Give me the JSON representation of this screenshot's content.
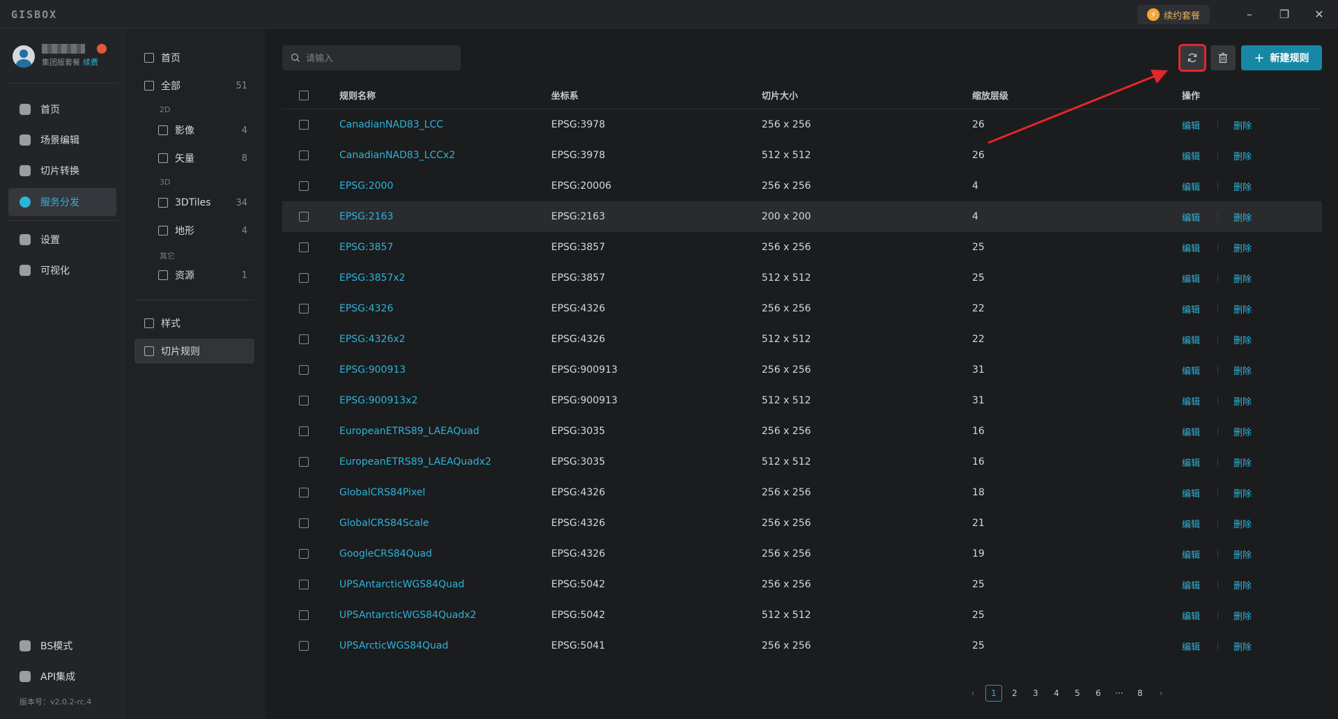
{
  "app": {
    "logo": "GISBOX",
    "renew_pill": "续约套餐"
  },
  "user": {
    "plan": "集团版套餐",
    "renew_link": "续费"
  },
  "left_nav": {
    "items": [
      {
        "label": "首页",
        "icon": "home-icon"
      },
      {
        "label": "场景编辑",
        "icon": "cube-icon"
      },
      {
        "label": "切片转换",
        "icon": "swap-icon"
      },
      {
        "label": "服务分发",
        "icon": "upload-icon",
        "active": true
      },
      {
        "label": "设置",
        "icon": "gear-icon"
      },
      {
        "label": "可视化",
        "icon": "chart-icon"
      }
    ],
    "bottom": [
      {
        "label": "BS模式",
        "icon": "code-icon"
      },
      {
        "label": "API集成",
        "icon": "api-icon"
      }
    ],
    "version": "版本号：v2.0.2-rc.4"
  },
  "sub_nav": {
    "home": "首页",
    "all": {
      "label": "全部",
      "count": "51"
    },
    "group_2d": "2D",
    "imagery": {
      "label": "影像",
      "count": "4"
    },
    "vector": {
      "label": "矢量",
      "count": "8"
    },
    "group_3d": "3D",
    "tiles3d": {
      "label": "3DTiles",
      "count": "34"
    },
    "terrain": {
      "label": "地形",
      "count": "4"
    },
    "group_other": "其它",
    "resource": {
      "label": "资源",
      "count": "1"
    },
    "style": "样式",
    "tile_rules": "切片规则"
  },
  "toolbar": {
    "search_placeholder": "请输入",
    "new_rule": "新建规则"
  },
  "table": {
    "headers": {
      "name": "规则名称",
      "crs": "坐标系",
      "tile_size": "切片大小",
      "zoom": "缩放层级",
      "ops": "操作"
    },
    "edit_label": "编辑",
    "delete_label": "删除",
    "rows": [
      {
        "name": "CanadianNAD83_LCC",
        "crs": "EPSG:3978",
        "size": "256 x 256",
        "zoom": "26"
      },
      {
        "name": "CanadianNAD83_LCCx2",
        "crs": "EPSG:3978",
        "size": "512 x 512",
        "zoom": "26"
      },
      {
        "name": "EPSG:2000",
        "crs": "EPSG:20006",
        "size": "256 x 256",
        "zoom": "4"
      },
      {
        "name": "EPSG:2163",
        "crs": "EPSG:2163",
        "size": "200 x 200",
        "zoom": "4"
      },
      {
        "name": "EPSG:3857",
        "crs": "EPSG:3857",
        "size": "256 x 256",
        "zoom": "25"
      },
      {
        "name": "EPSG:3857x2",
        "crs": "EPSG:3857",
        "size": "512 x 512",
        "zoom": "25"
      },
      {
        "name": "EPSG:4326",
        "crs": "EPSG:4326",
        "size": "256 x 256",
        "zoom": "22"
      },
      {
        "name": "EPSG:4326x2",
        "crs": "EPSG:4326",
        "size": "512 x 512",
        "zoom": "22"
      },
      {
        "name": "EPSG:900913",
        "crs": "EPSG:900913",
        "size": "256 x 256",
        "zoom": "31"
      },
      {
        "name": "EPSG:900913x2",
        "crs": "EPSG:900913",
        "size": "512 x 512",
        "zoom": "31"
      },
      {
        "name": "EuropeanETRS89_LAEAQuad",
        "crs": "EPSG:3035",
        "size": "256 x 256",
        "zoom": "16"
      },
      {
        "name": "EuropeanETRS89_LAEAQuadx2",
        "crs": "EPSG:3035",
        "size": "512 x 512",
        "zoom": "16"
      },
      {
        "name": "GlobalCRS84Pixel",
        "crs": "EPSG:4326",
        "size": "256 x 256",
        "zoom": "18"
      },
      {
        "name": "GlobalCRS84Scale",
        "crs": "EPSG:4326",
        "size": "256 x 256",
        "zoom": "21"
      },
      {
        "name": "GoogleCRS84Quad",
        "crs": "EPSG:4326",
        "size": "256 x 256",
        "zoom": "19"
      },
      {
        "name": "UPSAntarcticWGS84Quad",
        "crs": "EPSG:5042",
        "size": "256 x 256",
        "zoom": "25"
      },
      {
        "name": "UPSAntarcticWGS84Quadx2",
        "crs": "EPSG:5042",
        "size": "512 x 512",
        "zoom": "25"
      },
      {
        "name": "UPSArcticWGS84Quad",
        "crs": "EPSG:5041",
        "size": "256 x 256",
        "zoom": "25"
      }
    ]
  },
  "pagination": {
    "pages": [
      "1",
      "2",
      "3",
      "4",
      "5",
      "6",
      "···",
      "8"
    ],
    "current": "1"
  },
  "colors": {
    "accent": "#2eb3d9",
    "primary_button": "#1688a5",
    "annotation": "#e3262b"
  }
}
